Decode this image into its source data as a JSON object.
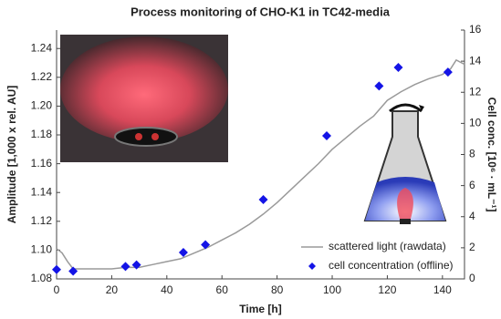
{
  "chart_data": {
    "type": "line",
    "title": "Process monitoring of CHO-K1 in TC42-media",
    "x_label": "Time [h]",
    "y_label": "Amplitude [1,000 x rel. AU]",
    "y2_label": "Cell conc. [10⁶ · mL⁻¹]",
    "xlim": [
      0,
      148
    ],
    "xticks": [
      0,
      20,
      40,
      60,
      80,
      100,
      120,
      140
    ],
    "ylim": [
      1.08,
      1.2528
    ],
    "yticks": [
      {
        "value": 1.08,
        "label": "1.08"
      },
      {
        "value": 1.1,
        "label": "1.10"
      },
      {
        "value": 1.12,
        "label": "1.12"
      },
      {
        "value": 1.14,
        "label": "1.14"
      },
      {
        "value": 1.16,
        "label": "1.16"
      },
      {
        "value": 1.18,
        "label": "1.18"
      },
      {
        "value": 1.2,
        "label": "1.20"
      },
      {
        "value": 1.22,
        "label": "1.22"
      },
      {
        "value": 1.24,
        "label": "1.24"
      }
    ],
    "y2lim": [
      0,
      16
    ],
    "y2ticks": [
      0,
      2,
      4,
      6,
      8,
      10,
      12,
      14,
      16
    ],
    "legend": "lower right",
    "series": [
      {
        "name": "scattered light (rawdata)",
        "color": "#9a9a9a",
        "type": "line",
        "x": [
          0,
          2,
          4,
          6,
          10,
          15,
          20,
          25,
          30,
          35,
          40,
          45,
          50,
          55,
          60,
          65,
          70,
          75,
          80,
          85,
          90,
          95,
          100,
          105,
          110,
          115,
          120,
          125,
          130,
          135,
          140,
          143,
          145,
          148
        ],
        "values": [
          1.101,
          1.098,
          1.092,
          1.087,
          1.087,
          1.087,
          1.087,
          1.088,
          1.088,
          1.09,
          1.092,
          1.094,
          1.098,
          1.102,
          1.107,
          1.112,
          1.118,
          1.125,
          1.133,
          1.142,
          1.151,
          1.16,
          1.17,
          1.178,
          1.186,
          1.193,
          1.204,
          1.21,
          1.215,
          1.219,
          1.222,
          1.226,
          1.232,
          1.229
        ]
      },
      {
        "name": "cell concentration (offline)",
        "color": "#1414e6",
        "type": "scatter",
        "axis": "y2",
        "x": [
          0,
          6,
          25,
          29,
          46,
          54,
          75,
          98,
          117,
          124,
          142
        ],
        "values": [
          0.6,
          0.5,
          0.8,
          0.9,
          1.7,
          2.2,
          5.1,
          9.2,
          12.4,
          13.6,
          13.3
        ]
      }
    ]
  }
}
